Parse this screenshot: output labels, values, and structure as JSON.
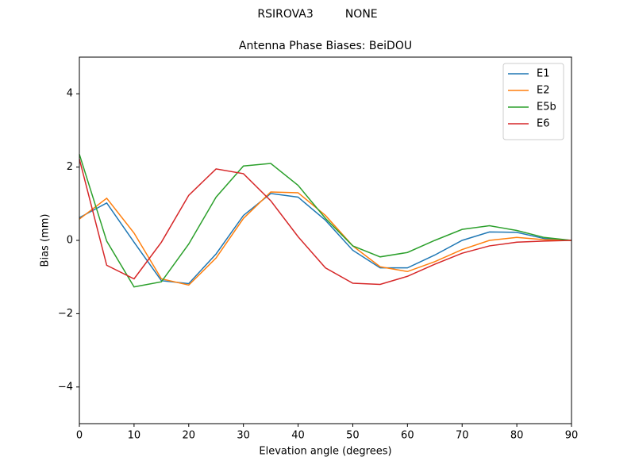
{
  "chart_data": {
    "type": "line",
    "suptitle": "RSIROVA3         NONE",
    "title": "Antenna Phase Biases: BeiDOU",
    "x_label": "Elevation angle (degrees)",
    "y_label": "Bias (mm)",
    "x": [
      0,
      5,
      10,
      15,
      20,
      25,
      30,
      35,
      40,
      45,
      50,
      55,
      60,
      65,
      70,
      75,
      80,
      85,
      90
    ],
    "series": [
      {
        "name": "E1",
        "color": "#1f77b4",
        "values": [
          0.62,
          1.02,
          -0.05,
          -1.1,
          -1.18,
          -0.37,
          0.68,
          1.28,
          1.18,
          0.55,
          -0.27,
          -0.75,
          -0.75,
          -0.4,
          0.0,
          0.23,
          0.22,
          0.05,
          0.0
        ]
      },
      {
        "name": "E2",
        "color": "#ff7f0e",
        "values": [
          0.58,
          1.15,
          0.2,
          -1.05,
          -1.22,
          -0.48,
          0.6,
          1.32,
          1.3,
          0.68,
          -0.15,
          -0.72,
          -0.85,
          -0.58,
          -0.25,
          0.0,
          0.08,
          0.02,
          0.0
        ]
      },
      {
        "name": "E5b",
        "color": "#2ca02c",
        "values": [
          2.35,
          -0.02,
          -1.27,
          -1.13,
          -0.1,
          1.18,
          2.03,
          2.1,
          1.5,
          0.6,
          -0.15,
          -0.45,
          -0.33,
          0.0,
          0.3,
          0.4,
          0.27,
          0.08,
          0.0
        ]
      },
      {
        "name": "E6",
        "color": "#d62728",
        "values": [
          2.22,
          -0.68,
          -1.05,
          -0.05,
          1.23,
          1.95,
          1.82,
          1.08,
          0.1,
          -0.75,
          -1.17,
          -1.2,
          -0.98,
          -0.65,
          -0.35,
          -0.15,
          -0.05,
          -0.02,
          0.0
        ]
      }
    ],
    "xlim": [
      0,
      90
    ],
    "xticks": [
      0,
      10,
      20,
      30,
      40,
      50,
      60,
      70,
      80,
      90
    ],
    "ylim": [
      -5,
      5
    ],
    "yticks": [
      {
        "value": -4,
        "label": "−4"
      },
      {
        "value": -2,
        "label": "−2"
      },
      0,
      2,
      4
    ],
    "grid": false,
    "legend": "upper-right"
  }
}
